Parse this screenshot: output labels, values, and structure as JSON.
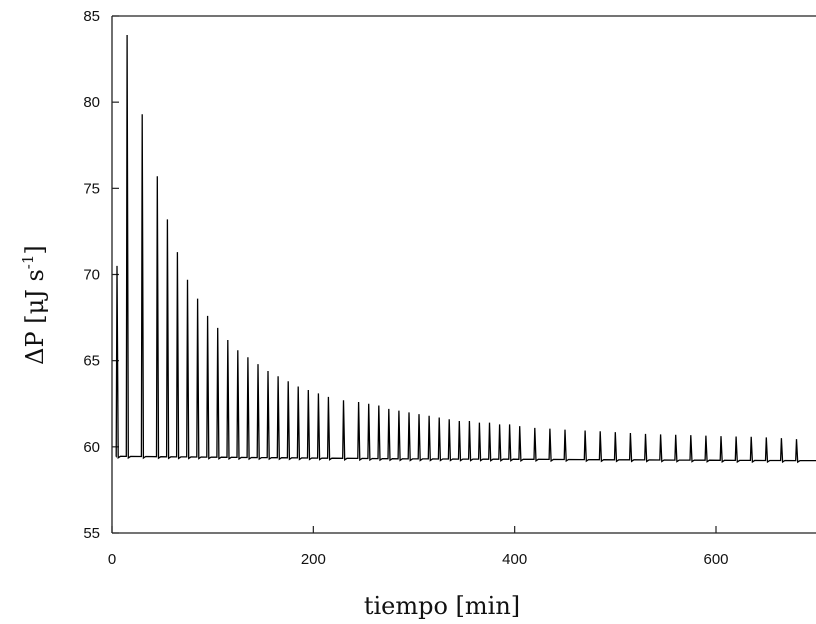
{
  "chart_data": {
    "type": "line",
    "title": "",
    "xlabel": "tiempo [min]",
    "ylabel_main": "ΔP [μJ s",
    "ylabel_sup": "-1",
    "ylabel_close": "]",
    "xlim": [
      0,
      690
    ],
    "ylim": [
      55,
      85
    ],
    "xticks": [
      0,
      200,
      400,
      600
    ],
    "yticks": [
      55,
      60,
      65,
      70,
      75,
      80,
      85
    ],
    "grid": false,
    "legend": "none",
    "line_color": "#000000",
    "baseline": {
      "x": [
        0,
        5,
        100,
        200,
        300,
        400,
        500,
        600,
        690
      ],
      "y": [
        59.5,
        59.45,
        59.4,
        59.35,
        59.3,
        59.28,
        59.25,
        59.22,
        59.2
      ]
    },
    "peaks": {
      "x": [
        5,
        15,
        30,
        45,
        55,
        65,
        75,
        85,
        95,
        105,
        115,
        125,
        135,
        145,
        155,
        165,
        175,
        185,
        195,
        205,
        215,
        230,
        245,
        255,
        265,
        275,
        285,
        295,
        305,
        315,
        325,
        335,
        345,
        355,
        365,
        375,
        385,
        395,
        405,
        420,
        435,
        450,
        470,
        485,
        500,
        515,
        530,
        545,
        560,
        575,
        590,
        605,
        620,
        635,
        650,
        665,
        680
      ],
      "y": [
        70.5,
        83.9,
        79.3,
        75.7,
        73.2,
        71.3,
        69.7,
        68.6,
        67.6,
        66.9,
        66.2,
        65.6,
        65.2,
        64.8,
        64.4,
        64.1,
        63.8,
        63.5,
        63.3,
        63.1,
        62.9,
        62.7,
        62.6,
        62.5,
        62.4,
        62.2,
        62.1,
        62.0,
        61.9,
        61.8,
        61.7,
        61.6,
        61.5,
        61.5,
        61.4,
        61.4,
        61.3,
        61.3,
        61.2,
        61.1,
        61.05,
        61.0,
        60.95,
        60.9,
        60.85,
        60.8,
        60.75,
        60.72,
        60.7,
        60.68,
        60.65,
        60.62,
        60.6,
        60.58,
        60.55,
        60.5,
        60.45
      ]
    }
  }
}
